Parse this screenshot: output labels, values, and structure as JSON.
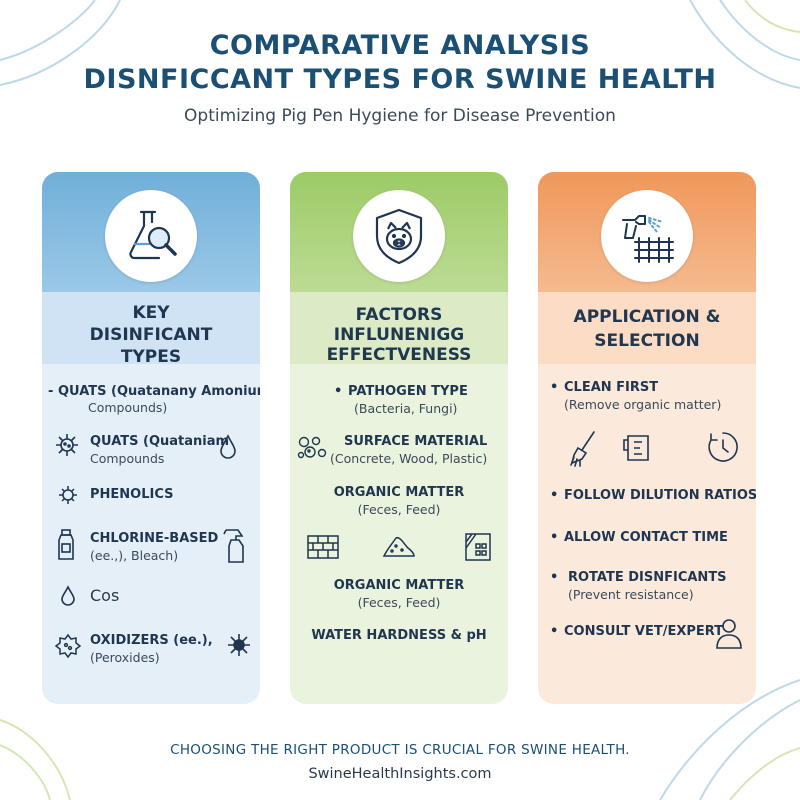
{
  "header": {
    "title_line1": "COMPARATIVE ANALYSIS",
    "title_line2": "DISNFICCANT TYPES FOR SWINE HEALTH",
    "subtitle": "Optimizing Pig Pen Hygiene for Disease Prevention"
  },
  "colors": {
    "title": "#1b4f73",
    "blue": "#70afd9",
    "green": "#9ccb66",
    "orange": "#f0975a"
  },
  "columns": [
    {
      "icon": "flask-magnifier-icon",
      "title": [
        "KEY",
        "DISINFICANT",
        "TYPES"
      ],
      "items": [
        {
          "bullet": "-",
          "main": "QUATS (Quatanany Amonium",
          "sub": "Compounds)"
        },
        {
          "icon": "virus-icon",
          "main": "QUATS (Quataniam",
          "sub": "Compounds",
          "icon_right": "droplet-icon"
        },
        {
          "icon": "virus-small-icon",
          "main": "PHENOLICS"
        },
        {
          "icon": "bottle-icon",
          "main": "CHLORINE-BASED",
          "sub": "(ee.,), Bleach)",
          "icon_right": "spray-bottle-icon"
        },
        {
          "icon": "droplet-icon",
          "main": "Cos"
        },
        {
          "icon": "bacteria-icon",
          "main": "OXIDIZERS (ee.),",
          "sub": "(Peroxides)",
          "icon_right": "microbe-icon"
        }
      ]
    },
    {
      "icon": "pig-shield-icon",
      "title": [
        "FACTORS",
        "INFLUNENIGG",
        "EFFECTVENESS"
      ],
      "items": [
        {
          "bullet": "•",
          "main": "PATHOGEN TYPE",
          "sub": "(Bacteria, Fungi)"
        },
        {
          "icon": "bacteria-cluster-icon",
          "main": "SURFACE MATERIAL",
          "sub": "(Concrete, Wood, Plastic)"
        },
        {
          "main": "ORGANIC MATTER",
          "sub": "(Feces, Feed)"
        },
        {
          "icons": [
            "brick-icon",
            "pile-icon",
            "panel-icon"
          ]
        },
        {
          "main": "ORGANIC MATTER",
          "sub": "(Feces, Feed)"
        },
        {
          "main": "WATER HARDNESS & pH"
        }
      ]
    },
    {
      "icon": "spray-pen-icon",
      "title": [
        "APPLICATION &",
        "SELECTION"
      ],
      "items": [
        {
          "bullet": "•",
          "main": "CLEAN FIRST",
          "sub": "(Remove organic matter)"
        },
        {
          "icons": [
            "brush-icon",
            "measuring-cup-icon",
            "timer-icon"
          ]
        },
        {
          "bullet": "•",
          "main": "FOLLOW DILUTION RATIOS"
        },
        {
          "bullet": "•",
          "main": "ALLOW CONTACT TIME"
        },
        {
          "bullet": "•",
          "main": "ROTATE DISNFICANTS",
          "sub": "(Prevent resistance)"
        },
        {
          "bullet": "•",
          "main": "CONSULT VET/EXPERT",
          "icon_right": "person-icon"
        }
      ]
    }
  ],
  "footer": {
    "text": "CHOOSING THE RIGHT PRODUCT IS CRUCIAL FOR SWINE HEALTH.",
    "site": "SwineHealthInsights.com"
  }
}
